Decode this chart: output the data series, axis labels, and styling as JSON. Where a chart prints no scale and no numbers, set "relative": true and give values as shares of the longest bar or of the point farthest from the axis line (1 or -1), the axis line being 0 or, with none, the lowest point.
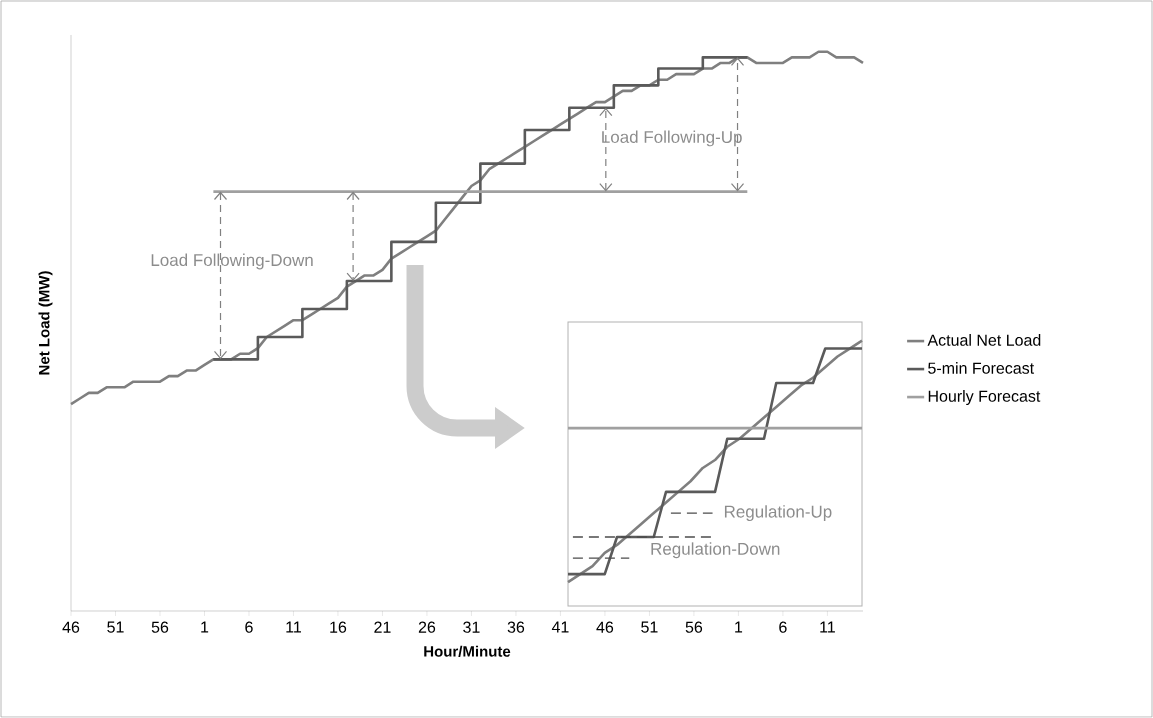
{
  "chart_data": [
    {
      "type": "line",
      "xlabel": "Hour/Minute",
      "ylabel": "Net Load (MW)",
      "relative": true,
      "categories": [
        "46",
        null,
        null,
        null,
        null,
        "51",
        null,
        null,
        null,
        null,
        "56",
        null,
        null,
        null,
        null,
        "1",
        null,
        null,
        null,
        null,
        "6",
        null,
        null,
        null,
        null,
        "11",
        null,
        null,
        null,
        null,
        "16",
        null,
        null,
        null,
        null,
        "21",
        null,
        null,
        null,
        null,
        "26",
        null,
        null,
        null,
        null,
        "31",
        null,
        null,
        null,
        null,
        "36",
        null,
        null,
        null,
        null,
        "41",
        null,
        null,
        null,
        null,
        "46",
        null,
        null,
        null,
        null,
        "51",
        null,
        null,
        null,
        null,
        "56",
        null,
        null,
        null,
        null,
        "1",
        null,
        null,
        null,
        null,
        "6",
        null,
        null,
        null,
        null,
        "11",
        null,
        null,
        null,
        null
      ],
      "legend": "right",
      "annotations": [
        "Load Following-Down",
        "Load Following-Up"
      ],
      "series": [
        {
          "name": "Actual Net Load",
          "color": "#7f7f7f",
          "values": [
            0.37,
            0.38,
            0.39,
            0.39,
            0.4,
            0.4,
            0.4,
            0.41,
            0.41,
            0.41,
            0.41,
            0.42,
            0.42,
            0.43,
            0.43,
            0.44,
            0.45,
            0.45,
            0.45,
            0.46,
            0.46,
            0.47,
            0.49,
            0.5,
            0.51,
            0.52,
            0.52,
            0.53,
            0.54,
            0.55,
            0.56,
            0.58,
            0.59,
            0.6,
            0.6,
            0.61,
            0.63,
            0.64,
            0.65,
            0.66,
            0.67,
            0.68,
            0.7,
            0.72,
            0.74,
            0.76,
            0.77,
            0.79,
            0.8,
            0.81,
            0.82,
            0.83,
            0.84,
            0.85,
            0.86,
            0.87,
            0.88,
            0.89,
            0.9,
            0.91,
            0.91,
            0.92,
            0.93,
            0.93,
            0.94,
            0.94,
            0.95,
            0.95,
            0.96,
            0.96,
            0.96,
            0.97,
            0.97,
            0.98,
            0.98,
            0.99,
            0.99,
            0.98,
            0.98,
            0.98,
            0.98,
            0.99,
            0.99,
            0.99,
            1.0,
            1.0,
            0.99,
            0.99,
            0.99,
            0.98
          ]
        },
        {
          "name": "5-min Forecast",
          "type": "step",
          "color": "#5a5a5a",
          "values": [
            null,
            null,
            null,
            null,
            null,
            null,
            null,
            null,
            null,
            null,
            null,
            null,
            null,
            null,
            null,
            null,
            0.45,
            0.45,
            0.45,
            0.45,
            0.45,
            0.49,
            0.49,
            0.49,
            0.49,
            0.49,
            0.54,
            0.54,
            0.54,
            0.54,
            0.54,
            0.59,
            0.59,
            0.59,
            0.59,
            0.59,
            0.66,
            0.66,
            0.66,
            0.66,
            0.66,
            0.73,
            0.73,
            0.73,
            0.73,
            0.73,
            0.8,
            0.8,
            0.8,
            0.8,
            0.8,
            0.86,
            0.86,
            0.86,
            0.86,
            0.86,
            0.9,
            0.9,
            0.9,
            0.9,
            0.9,
            0.94,
            0.94,
            0.94,
            0.94,
            0.94,
            0.97,
            0.97,
            0.97,
            0.97,
            0.97,
            0.99,
            0.99,
            0.99,
            0.99,
            0.99,
            0.99,
            null,
            null,
            null,
            null,
            null,
            null,
            null,
            null,
            null,
            null,
            null,
            null,
            null
          ]
        },
        {
          "name": "Hourly Forecast",
          "color": "#a0a0a0",
          "values": [
            null,
            null,
            null,
            null,
            null,
            null,
            null,
            null,
            null,
            null,
            null,
            null,
            null,
            null,
            null,
            null,
            0.75,
            0.75,
            0.75,
            0.75,
            0.75,
            0.75,
            0.75,
            0.75,
            0.75,
            0.75,
            0.75,
            0.75,
            0.75,
            0.75,
            0.75,
            0.75,
            0.75,
            0.75,
            0.75,
            0.75,
            0.75,
            0.75,
            0.75,
            0.75,
            0.75,
            0.75,
            0.75,
            0.75,
            0.75,
            0.75,
            0.75,
            0.75,
            0.75,
            0.75,
            0.75,
            0.75,
            0.75,
            0.75,
            0.75,
            0.75,
            0.75,
            0.75,
            0.75,
            0.75,
            0.75,
            0.75,
            0.75,
            0.75,
            0.75,
            0.75,
            0.75,
            0.75,
            0.75,
            0.75,
            0.75,
            0.75,
            0.75,
            0.75,
            0.75,
            0.75,
            0.75,
            null,
            null,
            null,
            null,
            null,
            null,
            null,
            null,
            null,
            null,
            null,
            null,
            null
          ]
        }
      ]
    },
    {
      "type": "line",
      "relative": true,
      "categories": [
        null,
        null,
        null,
        null,
        null,
        null,
        null,
        null,
        null,
        null,
        null,
        null,
        null,
        null,
        null,
        null,
        null,
        null,
        null,
        null,
        null,
        null,
        null,
        null,
        null
      ],
      "annotations": [
        "Regulation-Up",
        "Regulation-Down"
      ],
      "series": [
        {
          "color": "#7f7f7f",
          "values": [
            0.09,
            0.12,
            0.15,
            0.2,
            0.23,
            0.27,
            0.31,
            0.35,
            0.39,
            0.43,
            0.47,
            0.52,
            0.55,
            0.6,
            0.63,
            0.67,
            0.71,
            0.75,
            0.79,
            0.83,
            0.86,
            0.9,
            0.94,
            0.97,
            1.0
          ]
        },
        {
          "color": "#5a5a5a",
          "values": [
            0.12,
            0.12,
            0.12,
            0.12,
            0.26,
            0.26,
            0.26,
            0.26,
            0.43,
            0.43,
            0.43,
            0.43,
            0.43,
            0.63,
            0.63,
            0.63,
            0.63,
            0.84,
            0.84,
            0.84,
            0.84,
            0.97,
            0.97,
            0.97,
            0.97
          ]
        },
        {
          "color": "#a0a0a0",
          "values": [
            0.67,
            0.67,
            0.67,
            0.67,
            0.67,
            0.67,
            0.67,
            0.67,
            0.67,
            0.67,
            0.67,
            0.67,
            0.67,
            0.67,
            0.67,
            0.67,
            0.67,
            0.67,
            0.67,
            0.67,
            0.67,
            0.67,
            0.67,
            0.67,
            0.67
          ]
        }
      ]
    }
  ]
}
